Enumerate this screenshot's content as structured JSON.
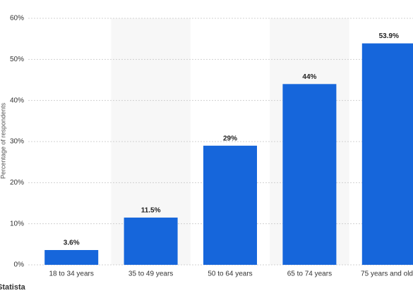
{
  "chart_data": {
    "type": "bar",
    "y_axis_label": "Percentage of respondents",
    "categories": [
      "18 to 34 years",
      "35 to 49 years",
      "50 to 64 years",
      "65 to 74 years",
      "75 years and old"
    ],
    "values": [
      3.6,
      11.5,
      29,
      44,
      53.9
    ],
    "value_labels": [
      "3.6%",
      "11.5%",
      "29%",
      "44%",
      "53.9%"
    ],
    "color": "#1666db",
    "ylim": [
      0,
      60
    ],
    "yticks": [
      {
        "value": 0,
        "label": "0%"
      },
      {
        "value": 10,
        "label": "10%"
      },
      {
        "value": 20,
        "label": "20%"
      },
      {
        "value": 30,
        "label": "30%"
      },
      {
        "value": 40,
        "label": "40%"
      },
      {
        "value": 50,
        "label": "50%"
      },
      {
        "value": 60,
        "label": "60%"
      }
    ],
    "grid": true,
    "source": "Statista"
  }
}
